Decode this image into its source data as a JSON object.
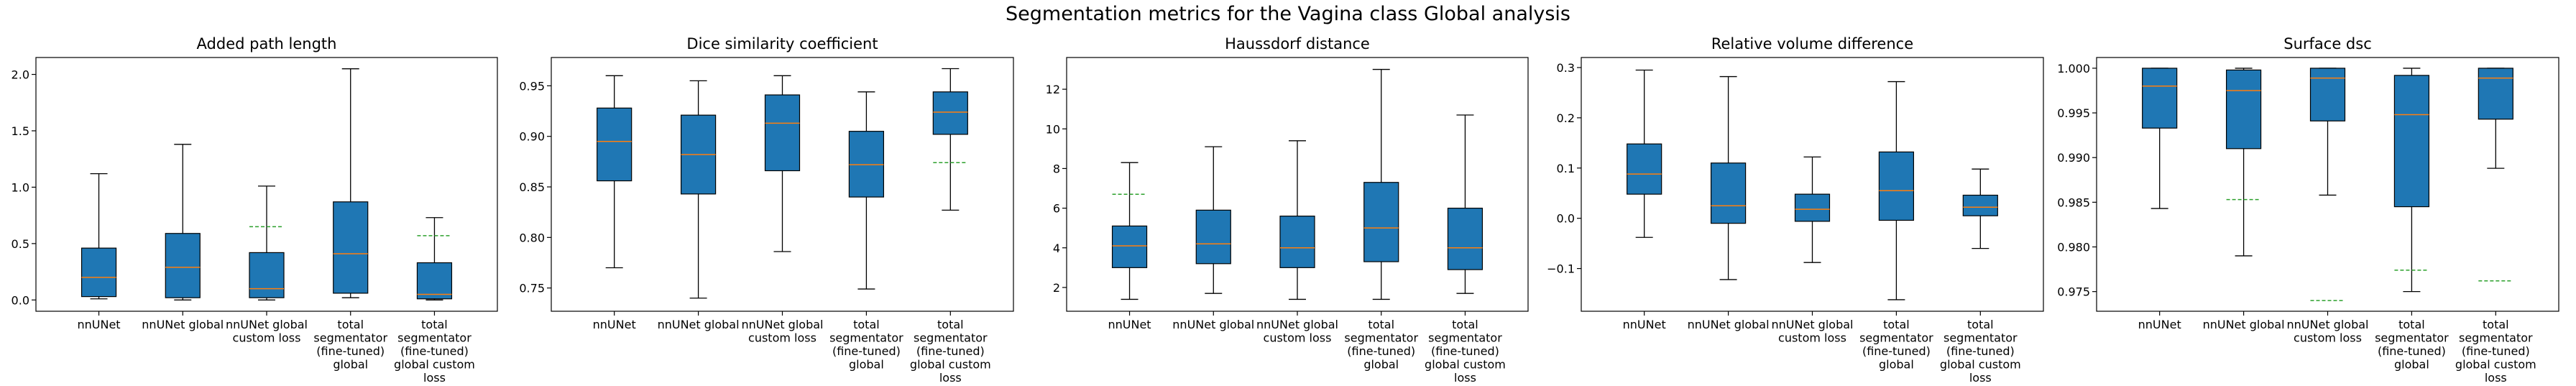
{
  "suptitle": "Segmentation metrics for the Vagina class Global analysis",
  "colors": {
    "box": "#1f77b4",
    "median": "#ff7f0e",
    "mean": "#2ca02c",
    "whisker": "#000000"
  },
  "category_labels": [
    [
      "nnUNet"
    ],
    [
      "nnUNet global"
    ],
    [
      "nnUNet global",
      "custom loss"
    ],
    [
      "total",
      "segmentator",
      "(fine-tuned)",
      "global"
    ],
    [
      "total",
      "segmentator",
      "(fine-tuned)",
      "global custom",
      "loss"
    ]
  ],
  "chart_data": [
    {
      "type": "box",
      "title": "Added path length",
      "categories": [
        "nnUNet",
        "nnUNet global",
        "nnUNet global custom loss",
        "total segmentator (fine-tuned) global",
        "total segmentator (fine-tuned) global custom loss"
      ],
      "ylim": [
        -0.1,
        2.15
      ],
      "yticks": [
        0.0,
        0.5,
        1.0,
        1.5,
        2.0
      ],
      "ytick_labels": [
        "0.0",
        "0.5",
        "1.0",
        "1.5",
        "2.0"
      ],
      "boxes": [
        {
          "whislo": 0.01,
          "q1": 0.03,
          "med": 0.2,
          "q3": 0.46,
          "whishi": 1.12,
          "mean": null
        },
        {
          "whislo": 0.0,
          "q1": 0.02,
          "med": 0.29,
          "q3": 0.59,
          "whishi": 1.38,
          "mean": null
        },
        {
          "whislo": 0.0,
          "q1": 0.02,
          "med": 0.1,
          "q3": 0.42,
          "whishi": 1.01,
          "mean": 0.65
        },
        {
          "whislo": 0.02,
          "q1": 0.06,
          "med": 0.41,
          "q3": 0.87,
          "whishi": 2.05,
          "mean": null
        },
        {
          "whislo": 0.0,
          "q1": 0.01,
          "med": 0.05,
          "q3": 0.33,
          "whishi": 0.73,
          "mean": 0.57
        }
      ]
    },
    {
      "type": "box",
      "title": "Dice similarity coefficient",
      "categories": [
        "nnUNet",
        "nnUNet global",
        "nnUNet global custom loss",
        "total segmentator (fine-tuned) global",
        "total segmentator (fine-tuned) global custom loss"
      ],
      "ylim": [
        0.727,
        0.978
      ],
      "yticks": [
        0.75,
        0.8,
        0.85,
        0.9,
        0.95
      ],
      "ytick_labels": [
        "0.75",
        "0.80",
        "0.85",
        "0.90",
        "0.95"
      ],
      "boxes": [
        {
          "whislo": 0.77,
          "q1": 0.856,
          "med": 0.895,
          "q3": 0.928,
          "whishi": 0.96,
          "mean": null
        },
        {
          "whislo": 0.74,
          "q1": 0.843,
          "med": 0.882,
          "q3": 0.921,
          "whishi": 0.955,
          "mean": null
        },
        {
          "whislo": 0.786,
          "q1": 0.866,
          "med": 0.913,
          "q3": 0.941,
          "whishi": 0.96,
          "mean": null
        },
        {
          "whislo": 0.749,
          "q1": 0.84,
          "med": 0.872,
          "q3": 0.905,
          "whishi": 0.944,
          "mean": null
        },
        {
          "whislo": 0.827,
          "q1": 0.902,
          "med": 0.924,
          "q3": 0.944,
          "whishi": 0.967,
          "mean": 0.874
        }
      ]
    },
    {
      "type": "box",
      "title": "Haussdorf distance",
      "categories": [
        "nnUNet",
        "nnUNet global",
        "nnUNet global custom loss",
        "total segmentator (fine-tuned) global",
        "total segmentator (fine-tuned) global custom loss"
      ],
      "ylim": [
        0.8,
        13.6
      ],
      "yticks": [
        2,
        4,
        6,
        8,
        10,
        12
      ],
      "ytick_labels": [
        "2",
        "4",
        "6",
        "8",
        "10",
        "12"
      ],
      "boxes": [
        {
          "whislo": 1.4,
          "q1": 3.0,
          "med": 4.1,
          "q3": 5.1,
          "whishi": 8.3,
          "mean": 6.7
        },
        {
          "whislo": 1.7,
          "q1": 3.2,
          "med": 4.2,
          "q3": 5.9,
          "whishi": 9.1,
          "mean": null
        },
        {
          "whislo": 1.4,
          "q1": 3.0,
          "med": 4.0,
          "q3": 5.6,
          "whishi": 9.4,
          "mean": null
        },
        {
          "whislo": 1.4,
          "q1": 3.3,
          "med": 5.0,
          "q3": 7.3,
          "whishi": 13.0,
          "mean": null
        },
        {
          "whislo": 1.7,
          "q1": 2.9,
          "med": 4.0,
          "q3": 6.0,
          "whishi": 10.7,
          "mean": null
        }
      ]
    },
    {
      "type": "box",
      "title": "Relative volume difference",
      "categories": [
        "nnUNet",
        "nnUNet global",
        "nnUNet global custom loss",
        "total segmentator (fine-tuned) global",
        "total segmentator (fine-tuned) global custom loss"
      ],
      "ylim": [
        -0.185,
        0.32
      ],
      "yticks": [
        -0.1,
        0.0,
        0.1,
        0.2,
        0.3
      ],
      "ytick_labels": [
        "−0.1",
        "0.0",
        "0.1",
        "0.2",
        "0.3"
      ],
      "boxes": [
        {
          "whislo": -0.038,
          "q1": 0.048,
          "med": 0.088,
          "q3": 0.148,
          "whishi": 0.295,
          "mean": null
        },
        {
          "whislo": -0.122,
          "q1": -0.01,
          "med": 0.025,
          "q3": 0.11,
          "whishi": 0.282,
          "mean": null
        },
        {
          "whislo": -0.088,
          "q1": -0.006,
          "med": 0.018,
          "q3": 0.048,
          "whishi": 0.122,
          "mean": null
        },
        {
          "whislo": -0.162,
          "q1": -0.004,
          "med": 0.055,
          "q3": 0.132,
          "whishi": 0.272,
          "mean": null
        },
        {
          "whislo": -0.06,
          "q1": 0.005,
          "med": 0.022,
          "q3": 0.046,
          "whishi": 0.098,
          "mean": null
        }
      ]
    },
    {
      "type": "box",
      "title": "Surface dsc",
      "categories": [
        "nnUNet",
        "nnUNet global",
        "nnUNet global custom loss",
        "total segmentator (fine-tuned) global",
        "total segmentator (fine-tuned) global custom loss"
      ],
      "ylim": [
        0.9728,
        1.0012
      ],
      "yticks": [
        0.975,
        0.98,
        0.985,
        0.99,
        0.995,
        1.0
      ],
      "ytick_labels": [
        "0.975",
        "0.980",
        "0.985",
        "0.990",
        "0.995",
        "1.000"
      ],
      "boxes": [
        {
          "whislo": 0.9843,
          "q1": 0.9933,
          "med": 0.998,
          "q3": 1.0,
          "whishi": 1.0,
          "mean": null
        },
        {
          "whislo": 0.979,
          "q1": 0.991,
          "med": 0.9975,
          "q3": 0.9998,
          "whishi": 1.0,
          "mean": 0.9853
        },
        {
          "whislo": 0.9858,
          "q1": 0.9941,
          "med": 0.9989,
          "q3": 1.0,
          "whishi": 1.0,
          "mean": 0.974
        },
        {
          "whislo": 0.975,
          "q1": 0.9845,
          "med": 0.9948,
          "q3": 0.9992,
          "whishi": 1.0,
          "mean": 0.9774
        },
        {
          "whislo": 0.9888,
          "q1": 0.9943,
          "med": 0.9989,
          "q3": 1.0,
          "whishi": 1.0,
          "mean": 0.9762
        }
      ]
    }
  ]
}
